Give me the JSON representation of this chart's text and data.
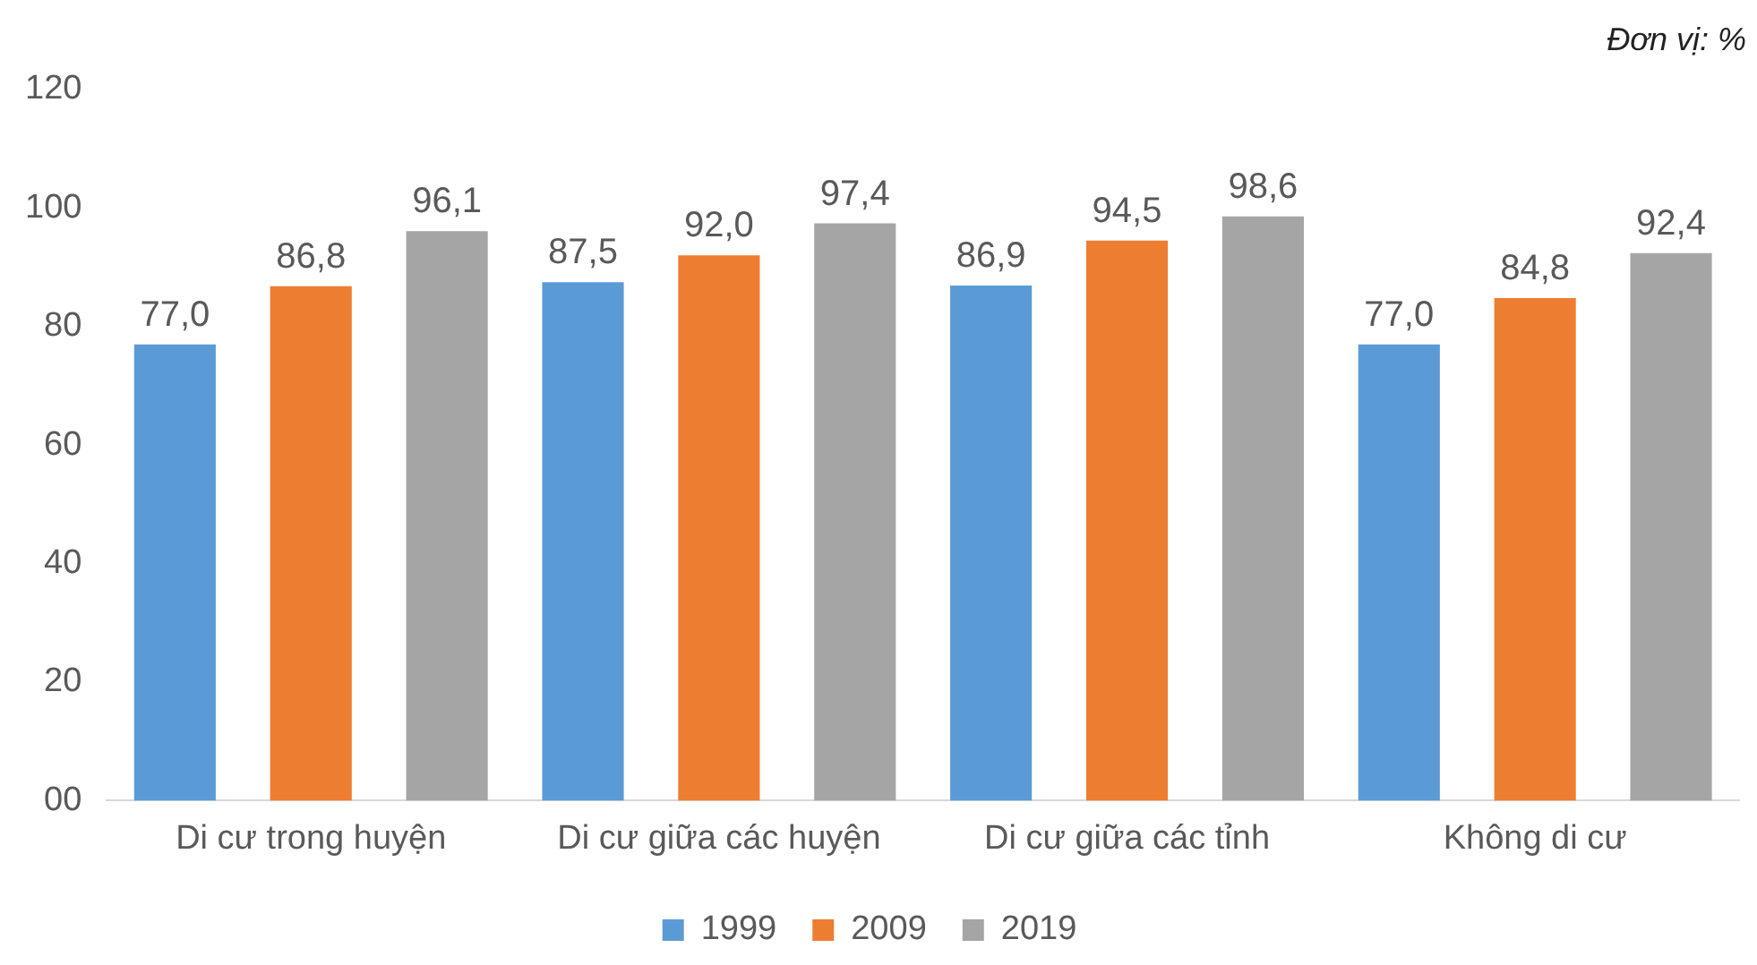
{
  "chart_data": {
    "type": "bar",
    "categories": [
      "Di cư trong huyện",
      "Di cư giữa các huyện",
      "Di cư giữa các tỉnh",
      "Không di cư"
    ],
    "series": [
      {
        "name": "1999",
        "color": "#5b9bd5",
        "values": [
          77.0,
          87.5,
          86.9,
          77.0
        ],
        "value_labels": [
          "77,0",
          "87,5",
          "86,9",
          "77,0"
        ]
      },
      {
        "name": "2009",
        "color": "#ed7d31",
        "values": [
          86.8,
          92.0,
          94.5,
          84.8
        ],
        "value_labels": [
          "86,8",
          "92,0",
          "94,5",
          "84,8"
        ]
      },
      {
        "name": "2019",
        "color": "#a5a5a5",
        "values": [
          96.1,
          97.4,
          98.6,
          92.4
        ],
        "value_labels": [
          "96,1",
          "97,4",
          "98,6",
          "92,4"
        ]
      }
    ],
    "ylim": [
      0,
      120
    ],
    "yticks": [
      {
        "value": 0,
        "label": "00"
      },
      20,
      40,
      60,
      80,
      100,
      120
    ],
    "grid": false,
    "legend": "bottom",
    "annotations": [
      "Đơn vị: %"
    ]
  }
}
